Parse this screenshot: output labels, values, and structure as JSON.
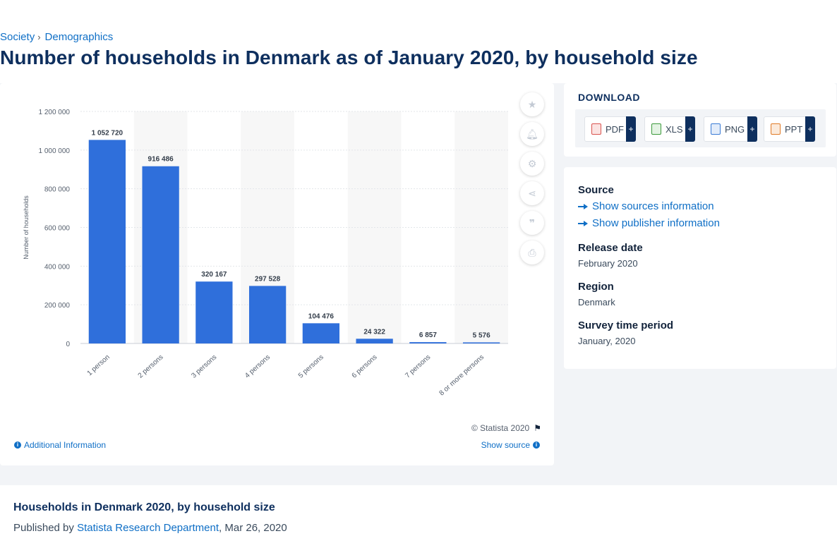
{
  "breadcrumb": {
    "items": [
      "Society",
      "Demographics"
    ],
    "separator": "›"
  },
  "page_title": "Number of households in Denmark as of January 2020, by household size",
  "chart_data": {
    "type": "bar",
    "categories": [
      "1 person",
      "2 persons",
      "3 persons",
      "4 persons",
      "5 persons",
      "6 persons",
      "7 persons",
      "8 or more persons"
    ],
    "values": [
      1052720,
      916486,
      320167,
      297528,
      104476,
      24322,
      6857,
      5576
    ],
    "data_labels": [
      "1 052 720",
      "916 486",
      "320 167",
      "297 528",
      "104 476",
      "24 322",
      "6 857",
      "5 576"
    ],
    "ylabel": "Number of households",
    "xlabel": "",
    "ylim": [
      0,
      1200000
    ],
    "yticks": [
      0,
      200000,
      400000,
      600000,
      800000,
      1000000,
      1200000
    ],
    "ytick_labels": [
      "0",
      "200 000",
      "400 000",
      "600 000",
      "800 000",
      "1 000 000",
      "1 200 000"
    ],
    "bar_color": "#2f6fdb",
    "grid": true,
    "legend": "none"
  },
  "chart_footer": {
    "copyright": "© Statista 2020",
    "additional_info": "Additional Information",
    "show_source": "Show source"
  },
  "tools": [
    "star-icon",
    "bell-icon",
    "gear-icon",
    "share-icon",
    "quote-icon",
    "print-icon"
  ],
  "download": {
    "title": "DOWNLOAD",
    "buttons": [
      {
        "label": "PDF",
        "plus": "+",
        "color": "#d9534f"
      },
      {
        "label": "XLS",
        "plus": "+",
        "color": "#3c9a3c"
      },
      {
        "label": "PNG",
        "plus": "+",
        "color": "#3a7bd5"
      },
      {
        "label": "PPT",
        "plus": "+",
        "color": "#e07b28"
      }
    ]
  },
  "meta": {
    "source_label": "Source",
    "show_sources": "Show sources information",
    "show_publisher": "Show publisher information",
    "release_label": "Release date",
    "release_value": "February 2020",
    "region_label": "Region",
    "region_value": "Denmark",
    "survey_label": "Survey time period",
    "survey_value": "January, 2020"
  },
  "bottom": {
    "title": "Households in Denmark 2020, by household size",
    "published_prefix": "Published by",
    "department": "Statista Research Department",
    "date": ", Mar 26, 2020"
  }
}
